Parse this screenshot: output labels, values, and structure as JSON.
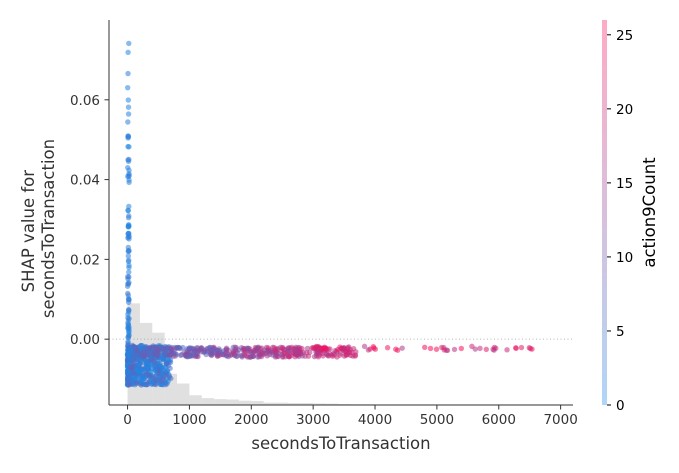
{
  "chart_data": {
    "type": "scatter",
    "title": "",
    "xlabel": "secondsToTransaction",
    "ylabel_lines": [
      "SHAP value for",
      "secondsToTransaction"
    ],
    "xlim": [
      -300,
      7200
    ],
    "ylim": [
      -0.0165,
      0.08
    ],
    "x_ticks": [
      0,
      1000,
      2000,
      3000,
      4000,
      5000,
      6000,
      7000
    ],
    "x_tick_labels": [
      "0",
      "1000",
      "2000",
      "3000",
      "4000",
      "5000",
      "6000",
      "7000"
    ],
    "y_ticks": [
      0.0,
      0.02,
      0.04,
      0.06
    ],
    "y_tick_labels": [
      "0.00",
      "0.02",
      "0.04",
      "0.06"
    ],
    "zero_line": true,
    "colorbar": {
      "label": "action9Count",
      "range": [
        0,
        26
      ],
      "ticks": [
        0,
        5,
        10,
        15,
        20,
        25
      ],
      "tick_labels": [
        "0",
        "5",
        "10",
        "15",
        "20",
        "25"
      ],
      "color_low": "#1e88e5",
      "color_high": "#ff0d57"
    },
    "histogram": {
      "bin_width": 200,
      "bins_start": 0,
      "relative_heights": [
        0.52,
        0.42,
        0.37,
        0.16,
        0.11,
        0.05,
        0.035,
        0.03,
        0.028,
        0.022,
        0.02,
        0.012,
        0.012,
        0.01,
        0.01,
        0.008,
        0.007,
        0.005,
        0.004,
        0.004,
        0.003,
        0.003,
        0.002,
        0.002,
        0.002,
        0.002,
        0.001,
        0.001,
        0.001,
        0.001,
        0.001,
        0.001,
        0.001,
        0.001,
        0.001
      ]
    },
    "point_groups": [
      {
        "description_code": "spike",
        "x_range": [
          0,
          25
        ],
        "y_range": [
          -0.011,
          0.075
        ],
        "color_range": [
          0,
          3
        ],
        "count": 140
      },
      {
        "description_code": "core",
        "x_range": [
          0,
          700
        ],
        "y_range": [
          -0.0115,
          -0.0015
        ],
        "color_range": [
          0,
          10
        ],
        "count": 500
      },
      {
        "description_code": "band",
        "x_range": [
          100,
          3700
        ],
        "y_range": [
          -0.0045,
          -0.002
        ],
        "color_range": [
          0,
          20
        ],
        "count": 450
      },
      {
        "description_code": "tail",
        "x_range": [
          3000,
          6800
        ],
        "y_range": [
          -0.0028,
          -0.0018
        ],
        "color_range": [
          16,
          26
        ],
        "count": 60
      }
    ]
  }
}
